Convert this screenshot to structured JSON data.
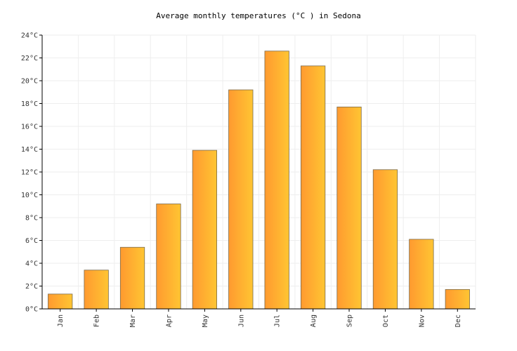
{
  "chart_data": {
    "type": "bar",
    "title": "Average monthly temperatures (°C ) in Sedona",
    "categories": [
      "Jan",
      "Feb",
      "Mar",
      "Apr",
      "May",
      "Jun",
      "Jul",
      "Aug",
      "Sep",
      "Oct",
      "Nov",
      "Dec"
    ],
    "series": [
      {
        "values": [
          1.3,
          3.4,
          5.4,
          9.2,
          13.9,
          19.2,
          22.6,
          21.3,
          17.7,
          12.2,
          6.1,
          1.7
        ]
      }
    ],
    "ylim": [
      0,
      24
    ],
    "yticks": [
      "0°C",
      "2°C",
      "4°C",
      "6°C",
      "8°C",
      "10°C",
      "12°C",
      "14°C",
      "16°C",
      "18°C",
      "20°C",
      "22°C",
      "24°C"
    ],
    "ytick_values": [
      0,
      2,
      4,
      6,
      8,
      10,
      12,
      14,
      16,
      18,
      20,
      22,
      24
    ],
    "grid": true,
    "colors": {
      "bar_left": "#ff9a30",
      "bar_right": "#ffc532",
      "bar_stroke": "#7a6a4a",
      "grid": "#eeeeee",
      "axis": "#000000"
    }
  }
}
